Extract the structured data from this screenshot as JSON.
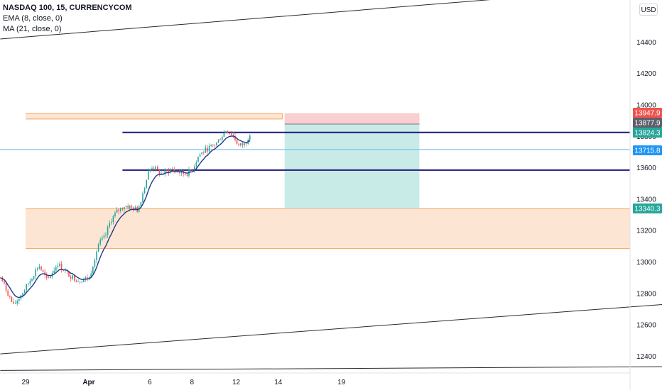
{
  "legend": {
    "symbol": "NASDAQ 100, 15, CURRENCYCOM",
    "ema": "EMA (8, close, 0)",
    "ma": "MA (21, close, 0)"
  },
  "currency_button": "USD",
  "colors": {
    "up": "#26a69a",
    "down": "#ef5350",
    "ema": "#1e3a8a",
    "zone_fill": "#fde0cc",
    "zone_border": "#f7a35c",
    "target_fill": "#c8ebe8",
    "stop_fill": "#f9cfd0",
    "level_navy": "#1a1a7a",
    "level_light": "#64b5f6",
    "channel": "#2a2a2a"
  },
  "chart_data": {
    "type": "line",
    "title": "NASDAQ 100, 15, CURRENCYCOM",
    "indicators": [
      "EMA (8, close, 0)",
      "MA (21, close, 0)"
    ],
    "x_axis": {
      "tick_labels": [
        "29",
        "Apr",
        "6",
        "8",
        "12",
        "14",
        "19"
      ]
    },
    "y_axis": {
      "tick_labels": [
        "14400",
        "14200",
        "14000",
        "13800",
        "13600",
        "13400",
        "13200",
        "13000",
        "12800",
        "12600",
        "12400"
      ],
      "range": [
        12330,
        14600
      ]
    },
    "price_tags": [
      {
        "value": "13947.9",
        "color": "#ef5350"
      },
      {
        "value": "13877.9",
        "color": "#5d606b"
      },
      {
        "value": "13824.3",
        "color": "#26a69a"
      },
      {
        "value": "13715.8",
        "color": "#2196f3"
      },
      {
        "value": "13340.3",
        "color": "#26a69a"
      }
    ],
    "horizontal_levels": [
      {
        "price": 13825,
        "color": "#1a1a7a",
        "from_day": 4.6
      },
      {
        "price": 13585,
        "color": "#1a1a7a",
        "from_day": 4.6
      },
      {
        "price": 13716,
        "color": "#64b5f6",
        "from_day": 0
      }
    ],
    "zones": [
      {
        "low": 13085,
        "high": 13340,
        "from_day": 0
      },
      {
        "low": 13910,
        "high": 13945,
        "from_day": 0,
        "to_day": 12.2
      }
    ],
    "position": {
      "entry": 13877.9,
      "stop": 13947.9,
      "target": 13340.3,
      "from_day": 12.3,
      "to_day": 18.7
    },
    "channel_lines": [
      {
        "p1": [
          -1.2,
          14420
        ],
        "p2": [
          30.4,
          14760
        ]
      },
      {
        "p1": [
          -1.2,
          12415
        ],
        "p2": [
          38.6,
          12813
        ]
      },
      {
        "p1": [
          -1.2,
          12310
        ],
        "p2": [
          38.6,
          12340
        ]
      }
    ],
    "price_path": [
      [
        -1.2,
        12900
      ],
      [
        -0.6,
        12720
      ],
      [
        0.0,
        12840
      ],
      [
        0.6,
        12980
      ],
      [
        1.0,
        12880
      ],
      [
        1.5,
        12990
      ],
      [
        2.0,
        12920
      ],
      [
        2.5,
        12880
      ],
      [
        3.0,
        12900
      ],
      [
        3.2,
        13000
      ],
      [
        3.45,
        13120
      ],
      [
        3.75,
        13160
      ],
      [
        4.0,
        13260
      ],
      [
        4.3,
        13320
      ],
      [
        4.7,
        13360
      ],
      [
        5.1,
        13340
      ],
      [
        5.3,
        13330
      ],
      [
        5.5,
        13420
      ],
      [
        5.8,
        13570
      ],
      [
        6.0,
        13610
      ],
      [
        6.4,
        13560
      ],
      [
        6.9,
        13590
      ],
      [
        7.3,
        13570
      ],
      [
        7.6,
        13560
      ],
      [
        7.9,
        13590
      ],
      [
        8.2,
        13680
      ],
      [
        8.6,
        13720
      ],
      [
        9.0,
        13750
      ],
      [
        9.5,
        13840
      ],
      [
        9.8,
        13810
      ],
      [
        10.1,
        13740
      ],
      [
        10.4,
        13750
      ],
      [
        10.65,
        13830
      ]
    ]
  }
}
